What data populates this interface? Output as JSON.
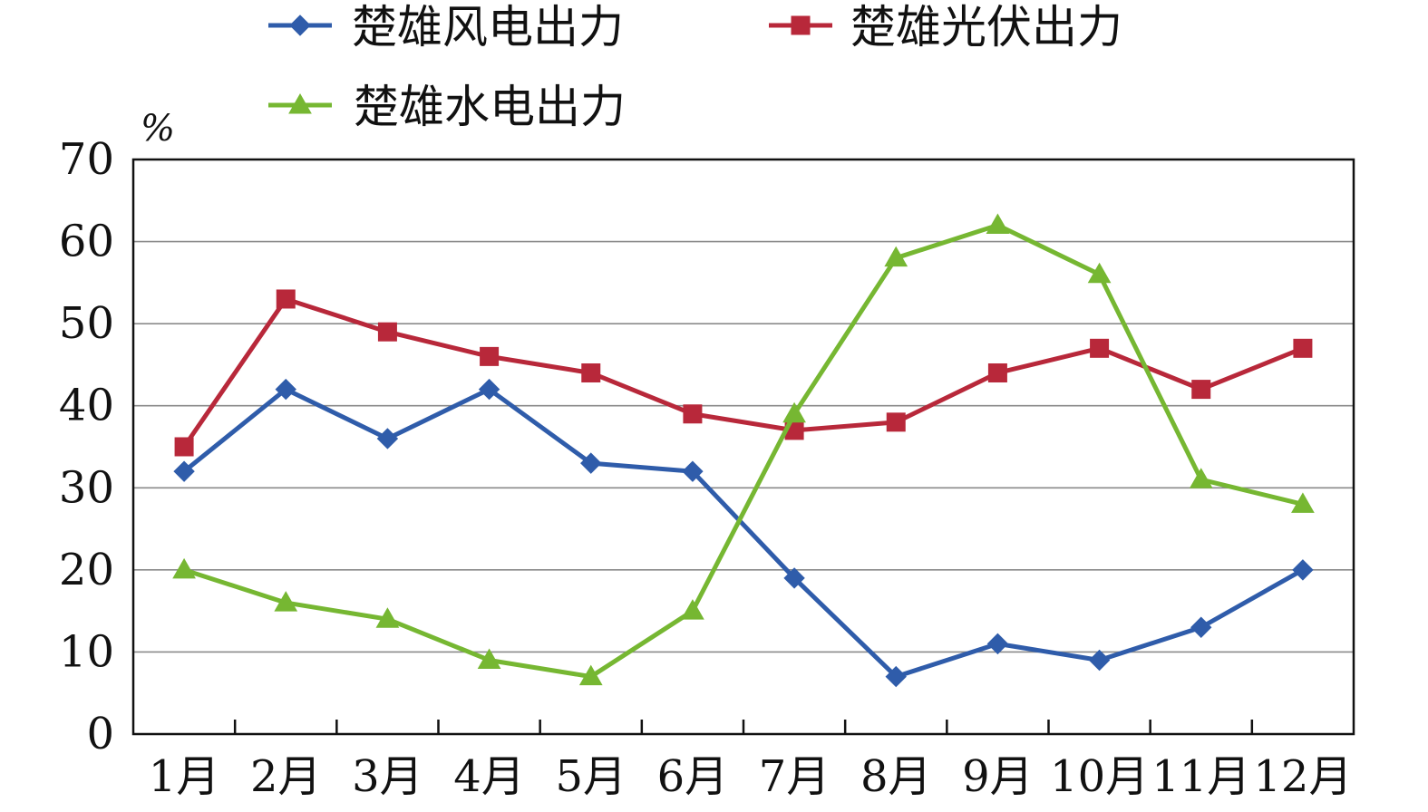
{
  "chart_data": {
    "type": "line",
    "title": "",
    "xlabel": "",
    "ylabel": "%",
    "ylim": [
      0,
      70
    ],
    "yticks": [
      "0",
      "10",
      "20",
      "30",
      "40",
      "50",
      "60",
      "70"
    ],
    "categories": [
      "1月",
      "2月",
      "3月",
      "4月",
      "5月",
      "6月",
      "7月",
      "8月",
      "9月",
      "10月",
      "11月",
      "12月"
    ],
    "grid": true,
    "legend_position": "top",
    "series": [
      {
        "name": "楚雄风电出力",
        "color": "#2f5caa",
        "marker": "diamond",
        "values": [
          32,
          42,
          36,
          42,
          33,
          32,
          19,
          7,
          11,
          9,
          13,
          20
        ]
      },
      {
        "name": "楚雄光伏出力",
        "color": "#b8283a",
        "marker": "square",
        "values": [
          35,
          53,
          49,
          46,
          44,
          39,
          37,
          38,
          44,
          47,
          42,
          47
        ]
      },
      {
        "name": "楚雄水电出力",
        "color": "#76b732",
        "marker": "triangle",
        "values": [
          20,
          16,
          14,
          9,
          7,
          15,
          39,
          58,
          62,
          56,
          31,
          28
        ]
      }
    ]
  }
}
